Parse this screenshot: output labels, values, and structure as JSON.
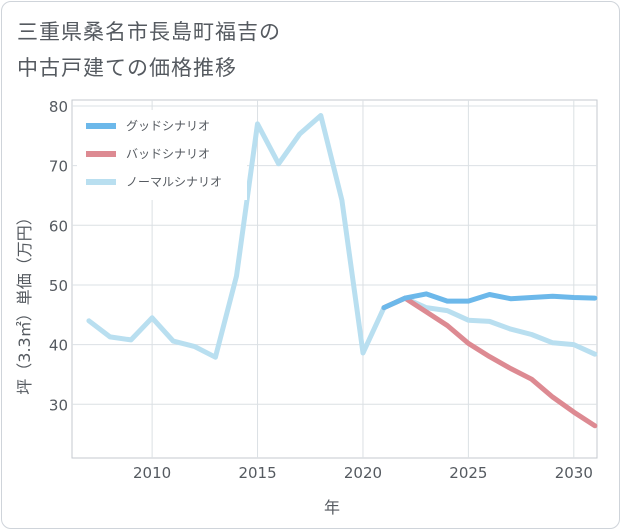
{
  "title_lines": [
    "三重県桑名市長島町福吉の",
    "中古戸建ての価格推移"
  ],
  "chart_data": {
    "type": "line",
    "title": "三重県桑名市長島町福吉の中古戸建ての価格推移",
    "xlabel": "年",
    "ylabel": "坪（3.3㎡）単価（万円）",
    "xlim": [
      2006.2,
      2031.1
    ],
    "ylim": [
      21,
      81
    ],
    "xticks": [
      2010,
      2015,
      2020,
      2025,
      2030
    ],
    "yticks": [
      30,
      40,
      50,
      60,
      70,
      80
    ],
    "grid": true,
    "legend_position": "top-left",
    "series": [
      {
        "name": "グッドシナリオ",
        "color": "#6cb8ea",
        "x": [
          2021,
          2022,
          2023,
          2024,
          2025,
          2026,
          2027,
          2028,
          2029,
          2030,
          2031
        ],
        "values": [
          46.2,
          47.8,
          48.5,
          47.3,
          47.3,
          48.4,
          47.7,
          47.9,
          48.1,
          47.9,
          47.8
        ]
      },
      {
        "name": "バッドシナリオ",
        "color": "#dd8a92",
        "x": [
          2021,
          2022,
          2023,
          2024,
          2025,
          2026,
          2027,
          2028,
          2029,
          2030,
          2031
        ],
        "values": [
          46.2,
          47.8,
          45.5,
          43.2,
          40.2,
          38.0,
          36.0,
          34.2,
          31.2,
          28.7,
          26.4
        ]
      },
      {
        "name": "ノーマルシナリオ",
        "color": "#b9dff0",
        "x": [
          2007,
          2008,
          2009,
          2010,
          2011,
          2012,
          2013,
          2014,
          2015,
          2016,
          2017,
          2018,
          2019,
          2020,
          2021,
          2022,
          2023,
          2024,
          2025,
          2026,
          2027,
          2028,
          2029,
          2030,
          2031
        ],
        "values": [
          44.0,
          41.3,
          40.8,
          44.5,
          40.6,
          39.7,
          37.9,
          51.5,
          77.0,
          70.3,
          75.3,
          78.4,
          64.2,
          38.6,
          46.2,
          47.8,
          46.2,
          45.7,
          44.1,
          43.9,
          42.6,
          41.7,
          40.3,
          40.0,
          38.4
        ]
      }
    ]
  }
}
